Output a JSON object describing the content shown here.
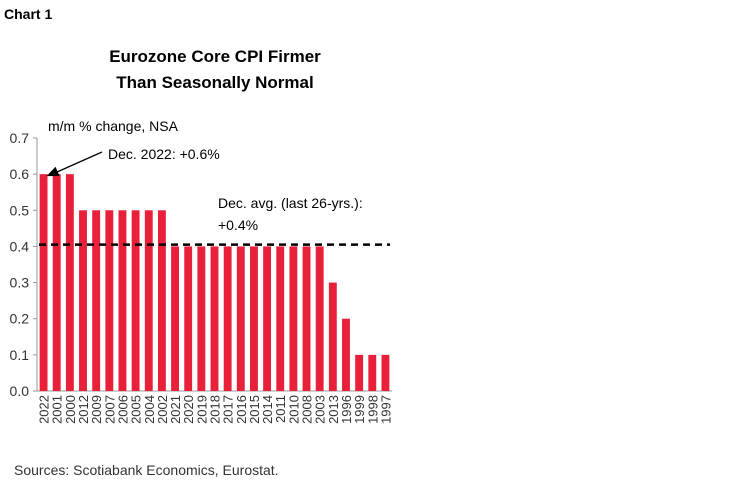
{
  "header": {
    "chart_label": "Chart 1"
  },
  "footer": {
    "sources": "Sources: Scotiabank Economics, Eurostat."
  },
  "chart_data": {
    "type": "bar",
    "title": "Eurozone Core CPI Firmer Than Seasonally Normal",
    "title_lines": [
      "Eurozone Core CPI Firmer",
      "Than Seasonally Normal"
    ],
    "ylabel": "m/m % change, NSA",
    "xlabel": "",
    "ylim": [
      0,
      0.7
    ],
    "yticks": [
      0.0,
      0.1,
      0.2,
      0.3,
      0.4,
      0.5,
      0.6,
      0.7
    ],
    "ytick_labels": [
      "0.0",
      "0.1",
      "0.2",
      "0.3",
      "0.4",
      "0.5",
      "0.6",
      "0.7"
    ],
    "categories": [
      "2022",
      "2001",
      "2000",
      "2012",
      "2009",
      "2007",
      "2006",
      "2005",
      "2004",
      "2002",
      "2021",
      "2020",
      "2019",
      "2018",
      "2017",
      "2016",
      "2015",
      "2014",
      "2011",
      "2010",
      "2008",
      "2003",
      "2013",
      "1996",
      "1999",
      "1998",
      "1997"
    ],
    "values": [
      0.6,
      0.6,
      0.6,
      0.5,
      0.5,
      0.5,
      0.5,
      0.5,
      0.5,
      0.5,
      0.4,
      0.4,
      0.4,
      0.4,
      0.4,
      0.4,
      0.4,
      0.4,
      0.4,
      0.4,
      0.4,
      0.4,
      0.3,
      0.2,
      0.1,
      0.1,
      0.1
    ],
    "bar_color": "#e8203a",
    "average_line": {
      "value": 0.405,
      "color": "#000000",
      "style": "dashed",
      "label_lines": [
        "Dec. avg. (last 26-yrs.):",
        "+0.4%"
      ]
    },
    "annotation": {
      "label": "Dec. 2022: +0.6%",
      "points_to": "2022"
    },
    "grid": false,
    "legend": "none"
  }
}
